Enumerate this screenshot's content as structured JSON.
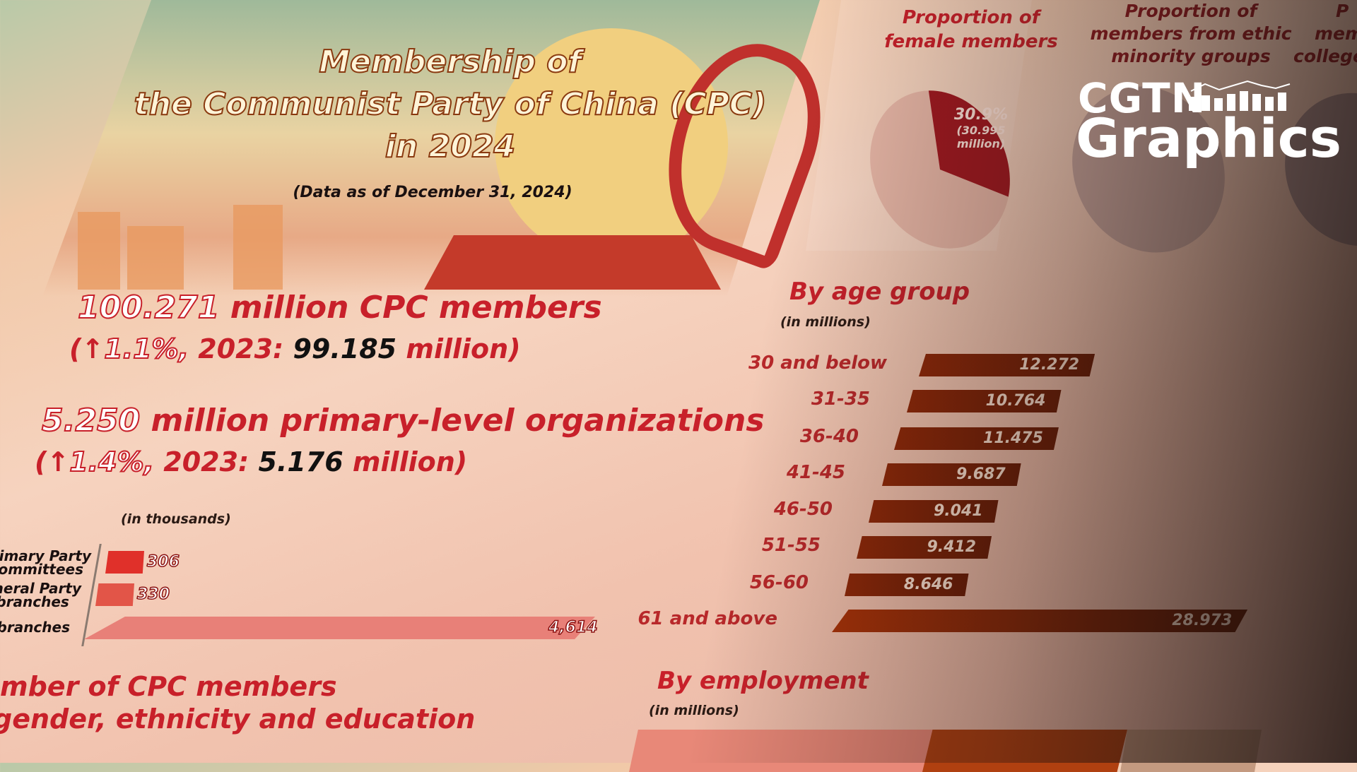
{
  "title": {
    "line1": "Membership of",
    "line2": "the Communist Party of China (CPC)",
    "line3": "in 2024",
    "subtitle": "(Data as of December 31, 2024)"
  },
  "members": {
    "value": "100.271",
    "text": "million CPC members",
    "open": "(",
    "arrow": "↑",
    "change": "1.1%,",
    "year_label": "2023:",
    "prev": "99.185",
    "unit": "million)"
  },
  "orgs": {
    "value": "5.250",
    "text": "million primary-level organizations",
    "open": "(",
    "arrow": "↑",
    "change": "1.4%,",
    "year_label": "2023:",
    "prev": "5.176",
    "unit": "million)"
  },
  "section_gender": {
    "line1": "mber of CPC members",
    "line2": "gender, ethnicity and education"
  },
  "pies": {
    "female_title1": "Proportion of",
    "female_title2": "female members",
    "female_pct": "30.9%",
    "female_sub1": "(30.995",
    "female_sub2": "million)",
    "ethnic_title1": "Proportion of",
    "ethnic_title2": "members from ethic",
    "ethnic_title3": "minority groups",
    "college_title1": "P",
    "college_title2": "memb",
    "college_title3": "college d"
  },
  "employment": {
    "title": "By employment",
    "unit": "(in millions)"
  },
  "logo": {
    "line1": "CGTN",
    "line2": "Graphics"
  },
  "colors": {
    "accent": "#c8202a",
    "age_bar": "#8a2608",
    "org_bar1": "#e0302a",
    "org_bar2": "#e25548",
    "org_bar3": "#e88078"
  },
  "chart_data": [
    {
      "type": "bar",
      "orientation": "horizontal",
      "title": "By age group",
      "unit": "(in millions)",
      "categories": [
        "30 and below",
        "31-35",
        "36-40",
        "41-45",
        "46-50",
        "51-55",
        "56-60",
        "61 and above"
      ],
      "values": [
        12.272,
        10.764,
        11.475,
        9.687,
        9.041,
        9.412,
        8.646,
        28.973
      ],
      "labels": [
        "12.272",
        "10.764",
        "11.475",
        "9.687",
        "9.041",
        "9.412",
        "8.646",
        "28.973"
      ]
    },
    {
      "type": "bar",
      "orientation": "horizontal",
      "unit": "(in thousands)",
      "categories": [
        "Primary Party committees",
        "eneral Party branches",
        "y branches"
      ],
      "category_lines": [
        [
          "Primary Party",
          "committees"
        ],
        [
          "eneral Party",
          "branches"
        ],
        [
          "y branches"
        ]
      ],
      "values": [
        306,
        330,
        4614
      ],
      "labels": [
        "306",
        "330",
        "4,614"
      ]
    },
    {
      "type": "pie",
      "title": "Proportion of female members",
      "values": [
        30.9,
        69.1
      ]
    }
  ]
}
